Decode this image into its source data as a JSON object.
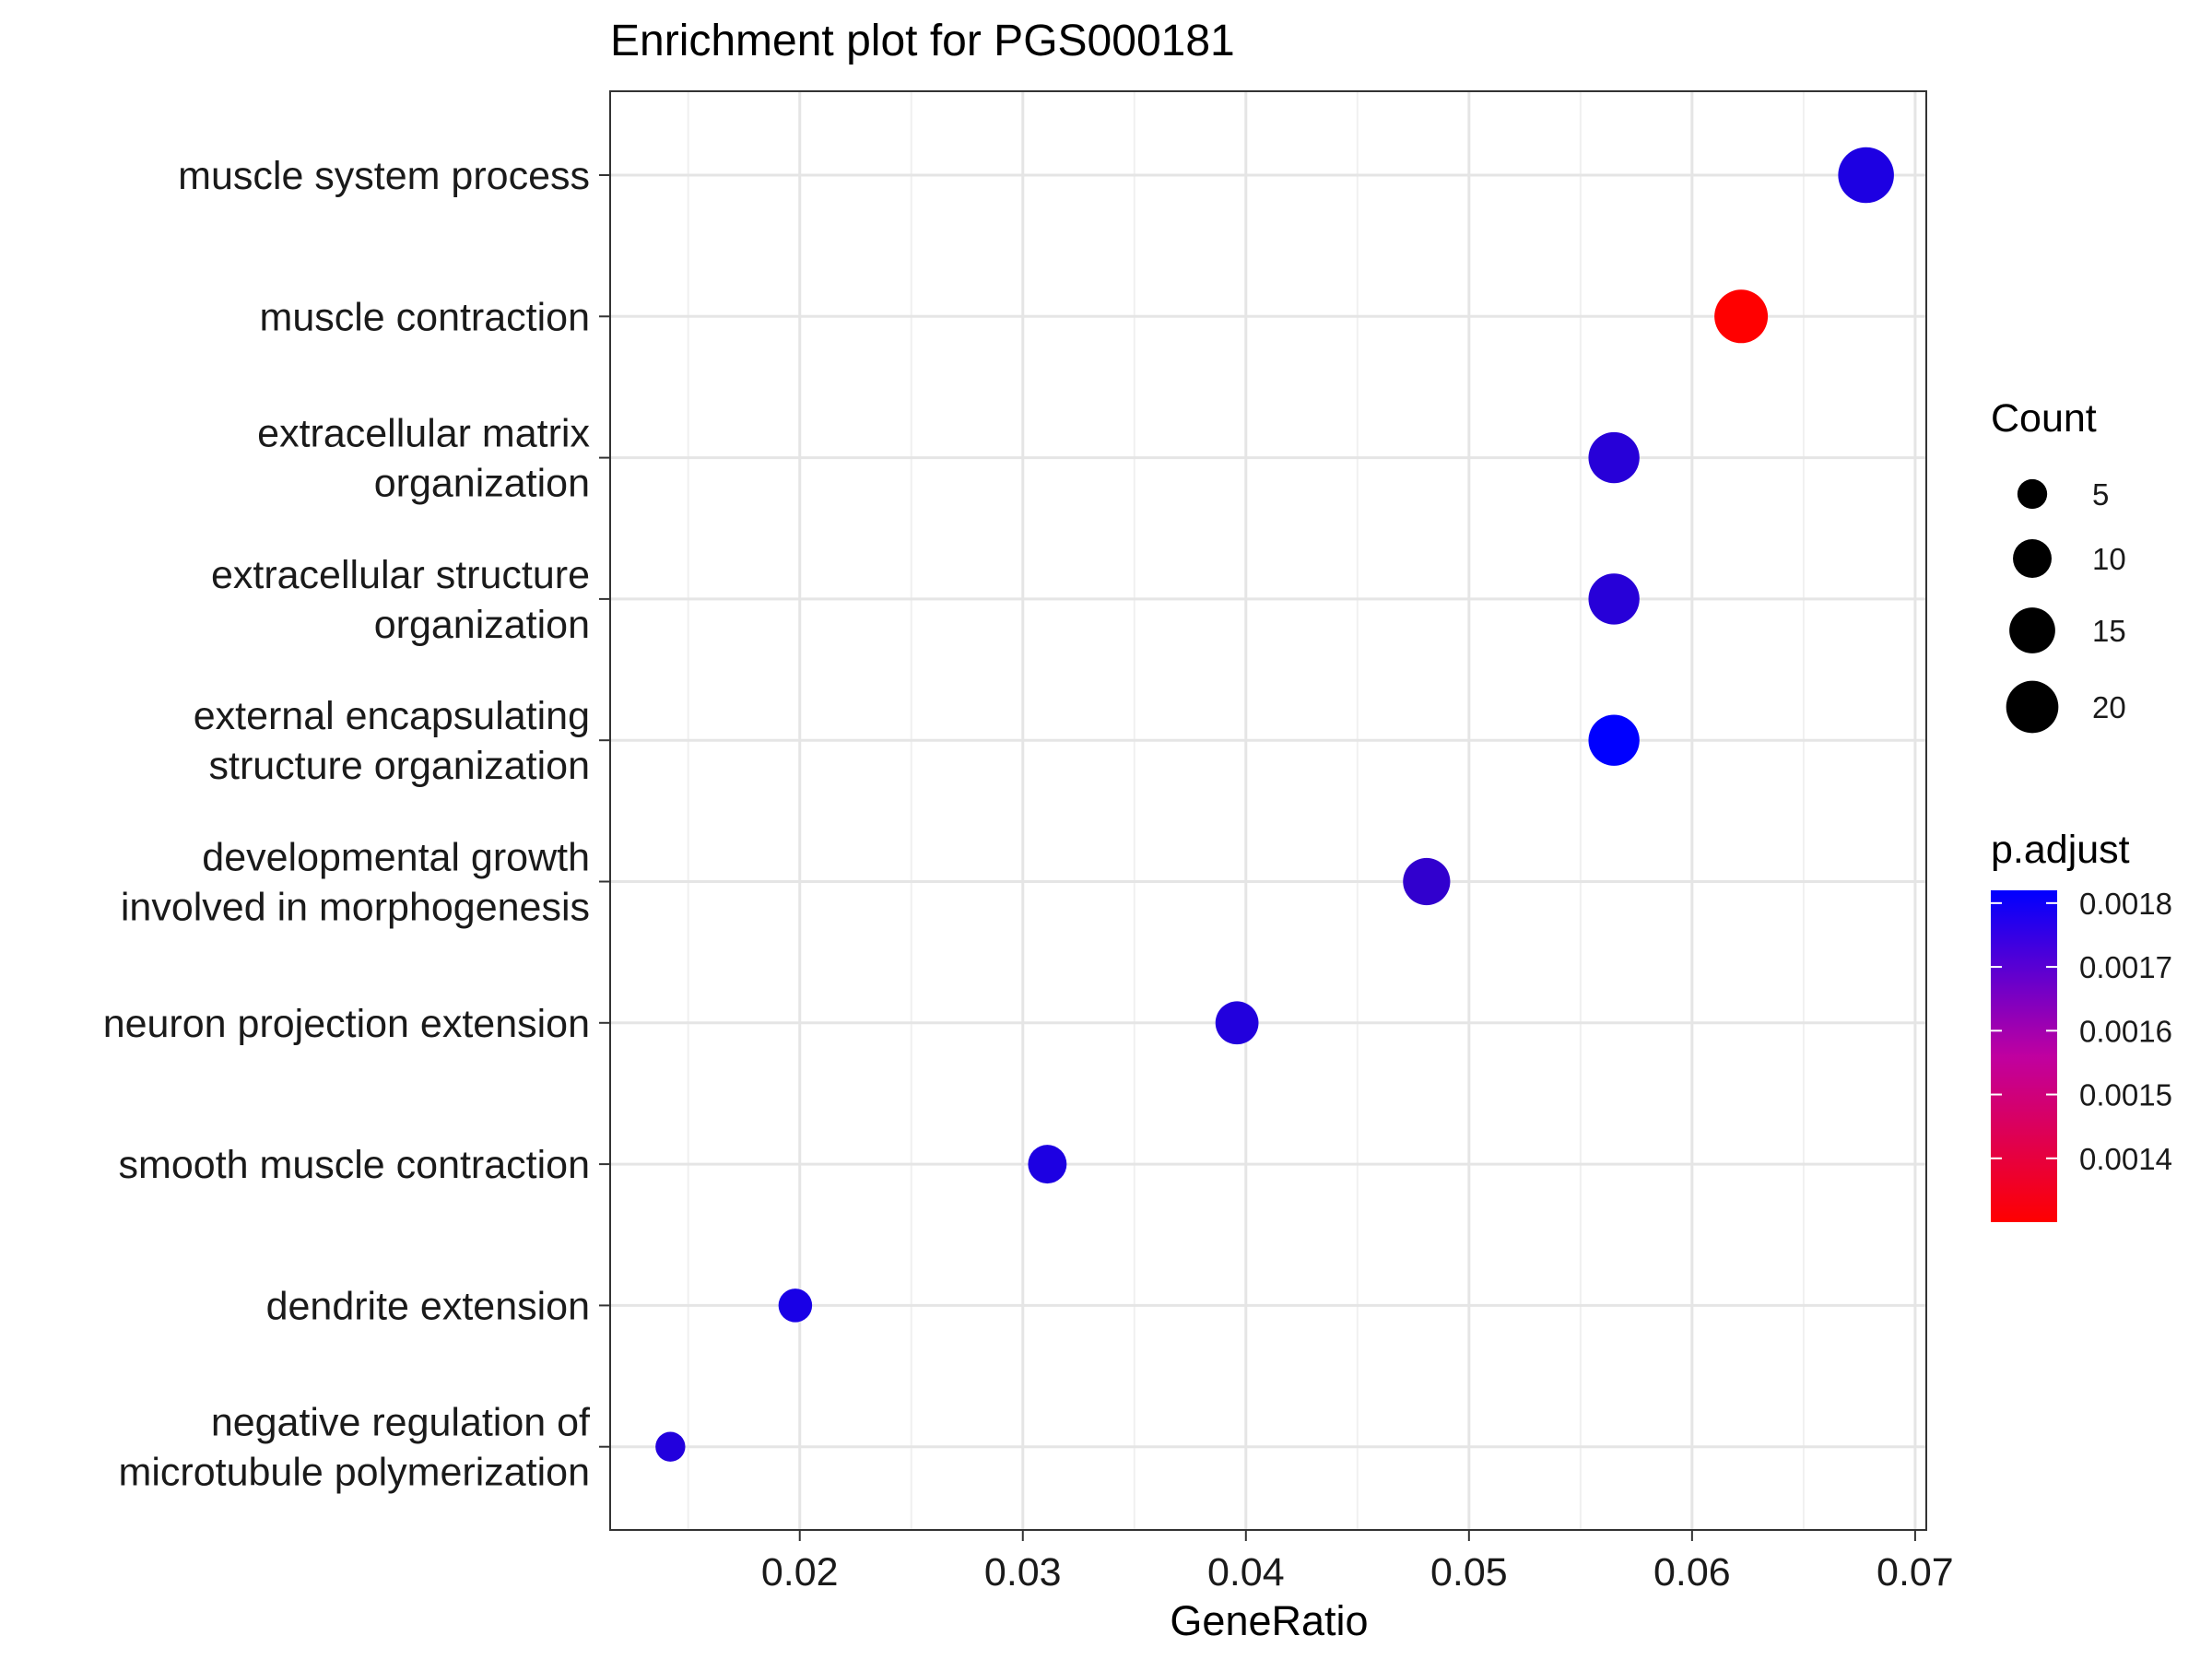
{
  "chart_data": {
    "type": "scatter",
    "title": "Enrichment plot for PGS000181",
    "xlabel": "GeneRatio",
    "ylabel": "",
    "xlim": [
      0.0115,
      0.0705
    ],
    "x_ticks": [
      0.02,
      0.03,
      0.04,
      0.05,
      0.06,
      0.07
    ],
    "x_tick_labels": [
      "0.02",
      "0.03",
      "0.04",
      "0.05",
      "0.06",
      "0.07"
    ],
    "grid": true,
    "points": [
      {
        "term": [
          "muscle system process"
        ],
        "gene_ratio": 0.0678,
        "count": 23,
        "p_adjust": 0.00176
      },
      {
        "term": [
          "muscle contraction"
        ],
        "gene_ratio": 0.0622,
        "count": 21,
        "p_adjust": 0.0013
      },
      {
        "term": [
          "extracellular matrix",
          "organization"
        ],
        "gene_ratio": 0.0565,
        "count": 19,
        "p_adjust": 0.00174
      },
      {
        "term": [
          "extracellular structure",
          "organization"
        ],
        "gene_ratio": 0.0565,
        "count": 19,
        "p_adjust": 0.00174
      },
      {
        "term": [
          "external encapsulating",
          "structure organization"
        ],
        "gene_ratio": 0.0565,
        "count": 19,
        "p_adjust": 0.00182
      },
      {
        "term": [
          "developmental growth",
          "involved in morphogenesis"
        ],
        "gene_ratio": 0.0481,
        "count": 16,
        "p_adjust": 0.00172
      },
      {
        "term": [
          "neuron projection extension"
        ],
        "gene_ratio": 0.0396,
        "count": 13,
        "p_adjust": 0.00175
      },
      {
        "term": [
          "smooth muscle contraction"
        ],
        "gene_ratio": 0.0311,
        "count": 10,
        "p_adjust": 0.00176
      },
      {
        "term": [
          "dendrite extension"
        ],
        "gene_ratio": 0.0198,
        "count": 7,
        "p_adjust": 0.00177
      },
      {
        "term": [
          "negative regulation of",
          "microtubule polymerization"
        ],
        "gene_ratio": 0.0142,
        "count": 5,
        "p_adjust": 0.00175
      }
    ],
    "size_legend": {
      "title": "Count",
      "values": [
        5,
        10,
        15,
        20
      ],
      "labels": [
        "5",
        "10",
        "15",
        "20"
      ],
      "placement": "right"
    },
    "color_legend": {
      "title": "p.adjust",
      "range": [
        0.0013,
        0.00182
      ],
      "low_color": "#ff0000",
      "high_color": "#0000ff",
      "ticks": [
        0.0014,
        0.0015,
        0.0016,
        0.0017,
        0.0018
      ],
      "tick_labels": [
        "0.0014",
        "0.0015",
        "0.0016",
        "0.0017",
        "0.0018"
      ],
      "placement": "right"
    }
  }
}
